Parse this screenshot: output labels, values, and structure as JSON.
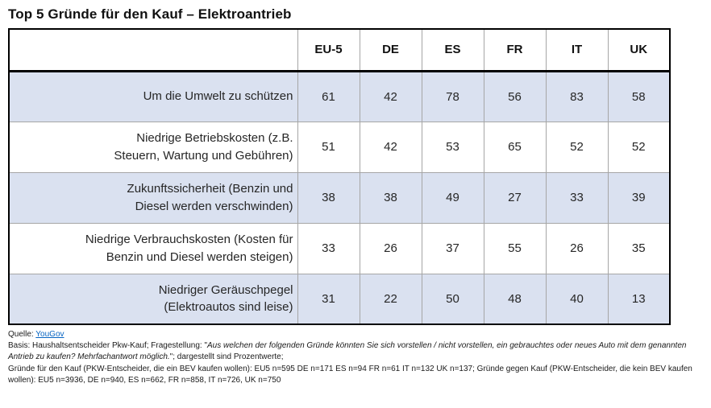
{
  "title": "Top 5 Gründe für den Kauf – Elektroantrieb",
  "table": {
    "columns": [
      "EU-5",
      "DE",
      "ES",
      "FR",
      "IT",
      "UK"
    ],
    "rows": [
      {
        "label": "Um die Umwelt zu schützen",
        "values": [
          "61",
          "42",
          "78",
          "56",
          "83",
          "58"
        ]
      },
      {
        "label": "Niedrige Betriebskosten (z.B.\nSteuern, Wartung und Gebühren)",
        "values": [
          "51",
          "42",
          "53",
          "65",
          "52",
          "52"
        ]
      },
      {
        "label": "Zukunftssicherheit (Benzin und\nDiesel werden verschwinden)",
        "values": [
          "38",
          "38",
          "49",
          "27",
          "33",
          "39"
        ]
      },
      {
        "label": "Niedrige Verbrauchskosten (Kosten für\nBenzin und Diesel werden steigen)",
        "values": [
          "33",
          "26",
          "37",
          "55",
          "26",
          "35"
        ]
      },
      {
        "label": "Niedriger Geräuschpegel\n(Elektroautos sind leise)",
        "values": [
          "31",
          "22",
          "50",
          "48",
          "40",
          "13"
        ]
      }
    ]
  },
  "footer": {
    "source_label": "Quelle: ",
    "source_link": "YouGov",
    "basis_prefix": "Basis: Haushaltsentscheider Pkw-Kauf; Fragestellung: \"",
    "question_italic": "Aus welchen der folgenden Gründe könnten Sie sich vorstellen / nicht vorstellen, ein gebrauchtes oder neues Auto mit dem genannten Antrieb zu kaufen? Mehrfachantwort möglich.",
    "basis_suffix": "\"; dargestellt sind Prozentwerte;",
    "samples_line": "Gründe für den Kauf (PKW-Entscheider, die ein BEV kaufen wollen): EU5 n=595 DE n=171 ES n=94 FR n=61 IT n=132 UK n=137; Gründe gegen Kauf (PKW-Entscheider, die kein BEV kaufen wollen): EU5 n=3936, DE n=940, ES n=662, FR n=858, IT n=726, UK n=750"
  },
  "colors": {
    "row_shade": "#dae1f0",
    "grid_light": "#a6a6a6",
    "border_dark": "#000000",
    "link": "#0563c1"
  },
  "chart_data": {
    "type": "table",
    "title": "Top 5 Gründe für den Kauf – Elektroantrieb",
    "columns": [
      "EU-5",
      "DE",
      "ES",
      "FR",
      "IT",
      "UK"
    ],
    "categories": [
      "Um die Umwelt zu schützen",
      "Niedrige Betriebskosten (z.B. Steuern, Wartung und Gebühren)",
      "Zukunftssicherheit (Benzin und Diesel werden verschwinden)",
      "Niedrige Verbrauchskosten (Kosten für Benzin und Diesel werden steigen)",
      "Niedriger Geräuschpegel (Elektroautos sind leise)"
    ],
    "series": [
      {
        "name": "EU-5",
        "values": [
          61,
          51,
          38,
          33,
          31
        ]
      },
      {
        "name": "DE",
        "values": [
          42,
          42,
          38,
          26,
          22
        ]
      },
      {
        "name": "ES",
        "values": [
          78,
          53,
          49,
          37,
          50
        ]
      },
      {
        "name": "FR",
        "values": [
          56,
          65,
          27,
          55,
          48
        ]
      },
      {
        "name": "IT",
        "values": [
          83,
          52,
          33,
          26,
          40
        ]
      },
      {
        "name": "UK",
        "values": [
          58,
          52,
          39,
          35,
          13
        ]
      }
    ],
    "units": "percent"
  }
}
